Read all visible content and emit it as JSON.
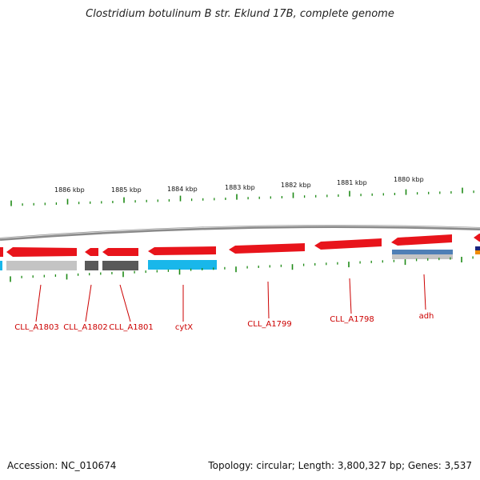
{
  "title": "Clostridium botulinum B str. Eklund 17B, complete genome",
  "footer": {
    "accession": "Accession: NC_010674",
    "summary": "Topology: circular; Length: 3,800,327 bp; Genes: 3,537"
  },
  "colors": {
    "forward_gene": "#e8141b",
    "cog_light_gray": "#c4c4c4",
    "cog_dark_gray": "#595959",
    "cog_cyan": "#19b7ea",
    "cog_blue": "#4f7fb6",
    "tick_green": "#1e8a16",
    "backbone_gray": "#8a8a8a",
    "label_red": "#cc0000"
  },
  "kbp_ticks": [
    "1886 kbp",
    "1885 kbp",
    "1884 kbp",
    "1883 kbp",
    "1882 kbp",
    "1881 kbp",
    "1880 kbp"
  ],
  "gene_labels": [
    "CLL_A1803",
    "CLL_A1802",
    "CLL_A1801",
    "cytX",
    "CLL_A1799",
    "CLL_A1798",
    "adh"
  ]
}
